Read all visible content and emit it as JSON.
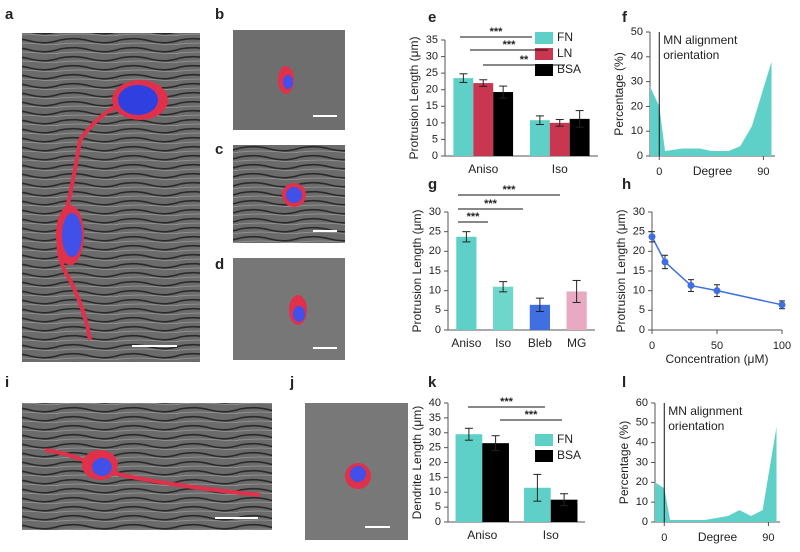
{
  "image_panels": [
    "a",
    "b",
    "c",
    "d",
    "i",
    "j"
  ],
  "chart_data": [
    {
      "panel": "e",
      "type": "bar",
      "y_label": "Protrusion Length (μm)",
      "categories": [
        "Aniso",
        "Iso"
      ],
      "series": [
        {
          "name": "FN",
          "color": "#5fd0c7",
          "values": [
            23.5,
            10.8
          ],
          "errors": [
            1.3,
            1.3
          ]
        },
        {
          "name": "LN",
          "color": "#c8374f",
          "values": [
            22,
            10
          ],
          "errors": [
            1,
            1
          ]
        },
        {
          "name": "BSA",
          "color": "#000000",
          "values": [
            19.3,
            11.2
          ],
          "errors": [
            1.8,
            2.5
          ]
        }
      ],
      "ylim": [
        0,
        35
      ],
      "yticks": [
        0,
        5,
        10,
        15,
        20,
        25,
        30,
        35
      ],
      "significance": [
        "***",
        "***",
        "**"
      ]
    },
    {
      "panel": "f",
      "type": "area",
      "y_label": "Percentage (%)",
      "x_label": "Degree",
      "color": "#5fd0c7",
      "annotation": [
        "MN alignment",
        "orientation"
      ],
      "vline": 0,
      "x": [
        -8,
        0,
        5,
        20,
        35,
        45,
        60,
        70,
        80,
        97
      ],
      "values": [
        28,
        20,
        2,
        3,
        3,
        2,
        2,
        4,
        12,
        38
      ],
      "xlim": [
        -8,
        100
      ],
      "xticks": [
        0,
        90
      ],
      "ylim": [
        0,
        50
      ],
      "yticks": [
        0,
        10,
        20,
        30,
        40,
        50
      ]
    },
    {
      "panel": "g",
      "type": "bar",
      "y_label": "Protrusion Length (μm)",
      "categories": [
        "Aniso",
        "Iso",
        "Bleb",
        "MG"
      ],
      "values": [
        23.7,
        11,
        6.4,
        9.8
      ],
      "errors": [
        1.3,
        1.3,
        1.7,
        2.8
      ],
      "colors": [
        "#5fd0c7",
        "#6fd6cb",
        "#3f6fe0",
        "#e8a9c2"
      ],
      "ylim": [
        0,
        30
      ],
      "yticks": [
        0,
        5,
        10,
        15,
        20,
        25,
        30
      ],
      "significance": [
        "***",
        "***",
        "***"
      ]
    },
    {
      "panel": "h",
      "type": "line",
      "y_label": "Protrusion Length (μm)",
      "x_label": "Concentration (μM)",
      "color": "#3f6fe0",
      "x": [
        0,
        10,
        30,
        50,
        100
      ],
      "values": [
        23.7,
        17.3,
        11.3,
        10,
        6.4
      ],
      "errors": [
        1.3,
        1.7,
        1.5,
        1.5,
        1
      ],
      "xlim": [
        0,
        100
      ],
      "xticks": [
        0,
        50,
        100
      ],
      "ylim": [
        0,
        30
      ],
      "yticks": [
        0,
        5,
        10,
        15,
        20,
        25,
        30
      ]
    },
    {
      "panel": "k",
      "type": "bar",
      "y_label": "Dendrite Length (μm)",
      "categories": [
        "Aniso",
        "Iso"
      ],
      "series": [
        {
          "name": "FN",
          "color": "#5fd0c7",
          "values": [
            29.5,
            11.5
          ],
          "errors": [
            2,
            4.5
          ]
        },
        {
          "name": "BSA",
          "color": "#000000",
          "values": [
            26.5,
            7.5
          ],
          "errors": [
            2.5,
            2
          ]
        }
      ],
      "ylim": [
        0,
        40
      ],
      "yticks": [
        0,
        5,
        10,
        15,
        20,
        25,
        30,
        35,
        40
      ],
      "significance": [
        "***",
        "***"
      ]
    },
    {
      "panel": "l",
      "type": "area",
      "y_label": "Percentage (%)",
      "x_label": "Degree",
      "color": "#5fd0c7",
      "annotation": [
        "MN alignment",
        "orientation"
      ],
      "vline": 0,
      "x": [
        -8,
        0,
        5,
        20,
        35,
        45,
        55,
        65,
        75,
        85,
        97
      ],
      "values": [
        20,
        17,
        1,
        1,
        1,
        2,
        3,
        6,
        3,
        6,
        48
      ],
      "xlim": [
        -8,
        100
      ],
      "xticks": [
        0,
        90
      ],
      "ylim": [
        0,
        60
      ],
      "yticks": [
        0,
        10,
        20,
        30,
        40,
        50,
        60
      ]
    }
  ]
}
